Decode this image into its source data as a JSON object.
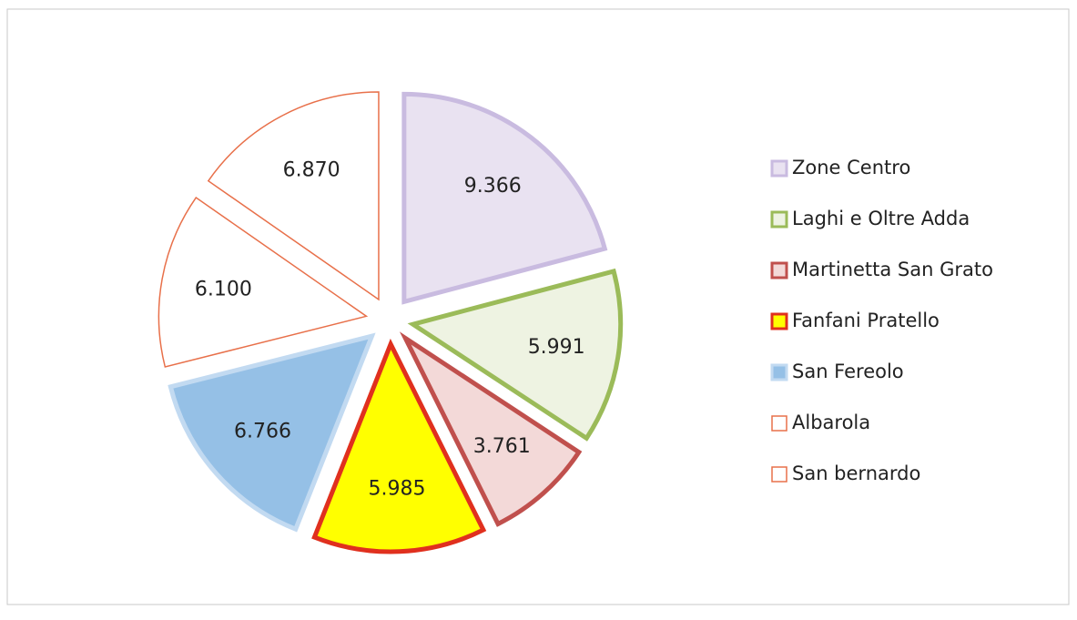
{
  "chart_data": {
    "type": "pie",
    "categories": [
      "Zone Centro",
      "Laghi e Oltre Adda",
      "Martinetta San Grato",
      "Fanfani Pratello",
      "San Fereolo",
      "Albarola",
      "San bernardo"
    ],
    "values": [
      9366,
      5991,
      3761,
      5985,
      6766,
      6100,
      6870
    ],
    "value_labels": [
      "9.366",
      "5.991",
      "3.761",
      "5.985",
      "6.766",
      "6.100",
      "6.870"
    ],
    "colors": [
      "#e9e2f1",
      "#eef3e2",
      "#f3d9d8",
      "#ffff00",
      "#95c0e6",
      "#ffffff",
      "#ffffff"
    ],
    "edgecolors": [
      "#c9bbe0",
      "#9bbb59",
      "#c0504d",
      "#e0301e",
      "#c2daf1",
      "#e8704a",
      "#e8704a"
    ],
    "linewidths": [
      5,
      5,
      5,
      5,
      5,
      1.5,
      1.5
    ],
    "legend": "right"
  }
}
